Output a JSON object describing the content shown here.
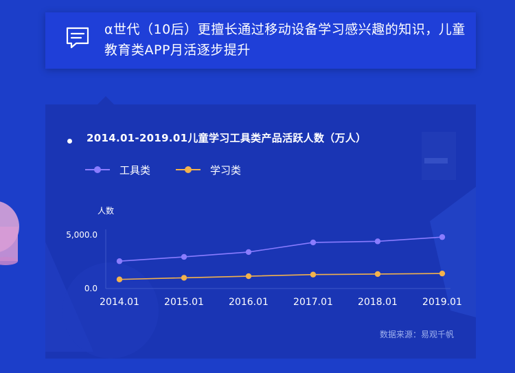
{
  "header": {
    "icon": "message-icon",
    "text": "α世代（10后）更擅长通过移动设备学习感兴趣的知识，儿童教育类APP月活逐步提升"
  },
  "chart_data": {
    "type": "line",
    "title": "2014.01-2019.01儿童学习工具类产品活跃人数（万人）",
    "ylabel": "人数",
    "xlabel": "",
    "categories": [
      "2014.01",
      "2015.01",
      "2016.01",
      "2017.01",
      "2018.01",
      "2019.01"
    ],
    "y_ticks": [
      "5,000.0",
      "0.0"
    ],
    "ylim": [
      0,
      5000
    ],
    "grid": false,
    "legend_position": "top-left",
    "series": [
      {
        "name": "工具类",
        "color": "#8a7cff",
        "values": [
          2550,
          2950,
          3400,
          4300,
          4400,
          4800
        ]
      },
      {
        "name": "学习类",
        "color": "#f3b24c",
        "values": [
          850,
          1000,
          1150,
          1300,
          1350,
          1400
        ]
      }
    ]
  },
  "source": "数据来源：易观千帆"
}
